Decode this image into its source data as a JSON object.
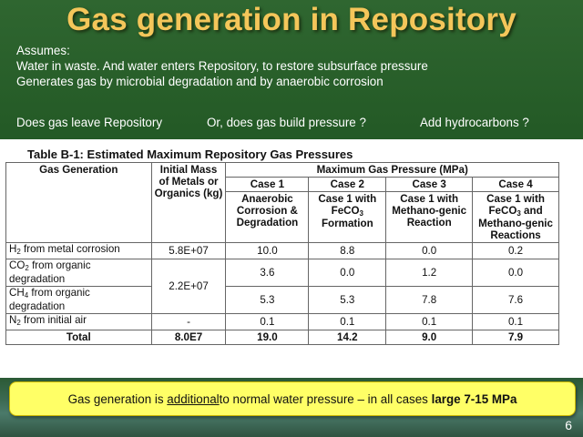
{
  "title": "Gas generation in Repository",
  "bullets": {
    "assumes": "Assumes:",
    "line1": "Water in waste.  And water enters Repository, to restore subsurface pressure",
    "line2": "Generates gas by microbial degradation and by anaerobic corrosion"
  },
  "questions": {
    "q1": "Does gas leave Repository",
    "q2": "Or, does gas build pressure ?",
    "q3": "Add hydrocarbons ?"
  },
  "table": {
    "title": "Table B-1: Estimated Maximum Repository Gas Pressures",
    "header": {
      "gas_generation": "Gas Generation",
      "initial_mass": "Initial Mass  of Metals or Organics (kg)",
      "max_pressure": "Maximum Gas Pressure (MPa)",
      "case1": "Case 1",
      "case2": "Case 2",
      "case3": "Case 3",
      "case4": "Case 4",
      "case1_desc": "Anaerobic Corrosion & Degradation",
      "case2_desc_a": "Case 1 with FeCO",
      "case2_desc_sub": "3",
      "case2_desc_b": " Formation",
      "case3_desc": "Case 1  with Methano-genic Reaction",
      "case4_desc_a": "Case 1 with FeCO",
      "case4_desc_sub": "3",
      "case4_desc_b": " and Methano-genic Reactions"
    },
    "rows": {
      "h2": {
        "pre": "H",
        "sub": "2",
        "post": " from metal corrosion",
        "mass": "5.8E+07",
        "c1": "10.0",
        "c2": "8.8",
        "c3": "0.0",
        "c4": "0.2"
      },
      "co2": {
        "pre": "CO",
        "sub": "2",
        "post": " from organic degradation",
        "mass": "2.2E+07",
        "c1": "3.6",
        "c2": "0.0",
        "c3": "1.2",
        "c4": "0.0"
      },
      "ch4": {
        "pre": "CH",
        "sub": "4",
        "post": " from organic degradation",
        "c1": "5.3",
        "c2": "5.3",
        "c3": "7.8",
        "c4": "7.6"
      },
      "n2": {
        "pre": "N",
        "sub": "2",
        "post": " from initial air",
        "mass": "-",
        "c1": "0.1",
        "c2": "0.1",
        "c3": "0.1",
        "c4": "0.1"
      },
      "total": {
        "label": "Total",
        "mass": "8.0E7",
        "c1": "19.0",
        "c2": "14.2",
        "c3": "9.0",
        "c4": "7.9"
      }
    }
  },
  "callout": {
    "pre": "Gas generation is ",
    "underlined": "additional",
    "mid": " to normal water pressure – in all cases ",
    "bold": "large 7-15 MPa"
  },
  "page_number": "6"
}
